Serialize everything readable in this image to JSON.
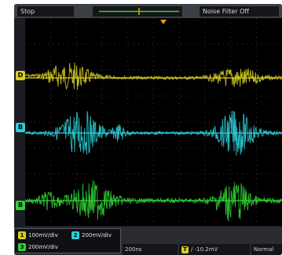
{
  "header": {
    "status": "Stop",
    "filter": "Noise Filter Off"
  },
  "channels": [
    {
      "id": "1",
      "label": "D",
      "color": "#d8cf22",
      "scale": "100mV/div"
    },
    {
      "id": "2",
      "label": "B",
      "color": "#2ccfd8",
      "scale": "200mV/div"
    },
    {
      "id": "3",
      "label": "B",
      "color": "#2fd235",
      "scale": "200mV/div"
    }
  ],
  "footer": {
    "timebase": "200ns",
    "trigger_badge": "T",
    "trigger_level": "/ -10.2mV",
    "sample": "Normal"
  }
}
